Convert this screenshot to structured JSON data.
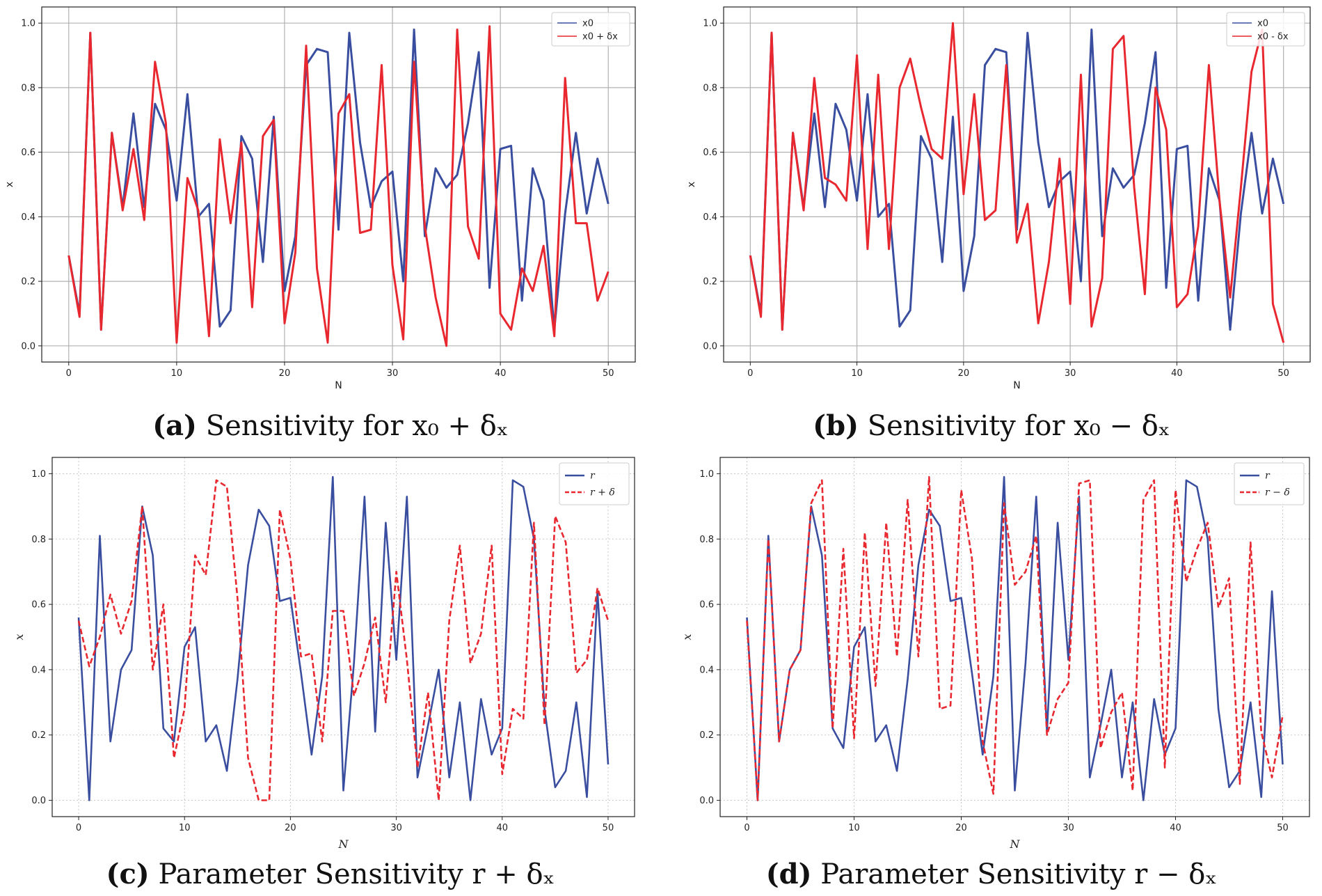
{
  "chart_data": [
    {
      "id": "a",
      "type": "line",
      "caption_label": "(a)",
      "caption_text": "Sensitivity for x₀ + δₓ",
      "xlabel": "N",
      "ylabel": "x",
      "xlim": [
        -2.5,
        52.5
      ],
      "ylim": [
        -0.05,
        1.05
      ],
      "xticks": [
        0,
        10,
        20,
        30,
        40,
        50
      ],
      "yticks": [
        0.0,
        0.2,
        0.4,
        0.6,
        0.8,
        1.0
      ],
      "grid": "solid",
      "legend_position": "top-right",
      "series": [
        {
          "name": "x0",
          "color": "#3a4ea0",
          "dash": "solid",
          "values": [
            0.28,
            0.1,
            0.97,
            0.05,
            0.66,
            0.43,
            0.72,
            0.43,
            0.75,
            0.67,
            0.45,
            0.78,
            0.4,
            0.44,
            0.06,
            0.11,
            0.65,
            0.58,
            0.26,
            0.71,
            0.17,
            0.34,
            0.87,
            0.92,
            0.91,
            0.36,
            0.97,
            0.63,
            0.43,
            0.51,
            0.54,
            0.2,
            0.98,
            0.34,
            0.55,
            0.49,
            0.53,
            0.69,
            0.91,
            0.18,
            0.61,
            0.62,
            0.14,
            0.55,
            0.45,
            0.05,
            0.41,
            0.66,
            0.41,
            0.58,
            0.44
          ]
        },
        {
          "name": "x0 + δx",
          "color": "#e8272f",
          "dash": "solid",
          "values": [
            0.28,
            0.09,
            0.97,
            0.05,
            0.66,
            0.42,
            0.61,
            0.39,
            0.88,
            0.69,
            0.01,
            0.52,
            0.42,
            0.03,
            0.64,
            0.38,
            0.63,
            0.12,
            0.65,
            0.7,
            0.07,
            0.29,
            0.93,
            0.24,
            0.01,
            0.72,
            0.78,
            0.35,
            0.36,
            0.87,
            0.25,
            0.02,
            0.88,
            0.37,
            0.15,
            0.0,
            0.98,
            0.37,
            0.27,
            0.99,
            0.1,
            0.05,
            0.24,
            0.17,
            0.31,
            0.03,
            0.83,
            0.38,
            0.38,
            0.14,
            0.23
          ]
        }
      ]
    },
    {
      "id": "b",
      "type": "line",
      "caption_label": "(b)",
      "caption_text": "Sensitivity for x₀ − δₓ",
      "xlabel": "N",
      "ylabel": "x",
      "xlim": [
        -2.5,
        52.5
      ],
      "ylim": [
        -0.05,
        1.05
      ],
      "xticks": [
        0,
        10,
        20,
        30,
        40,
        50
      ],
      "yticks": [
        0.0,
        0.2,
        0.4,
        0.6,
        0.8,
        1.0
      ],
      "grid": "solid",
      "legend_position": "top-right",
      "series": [
        {
          "name": "x0",
          "color": "#3a4ea0",
          "dash": "solid",
          "values": [
            0.28,
            0.1,
            0.97,
            0.05,
            0.66,
            0.43,
            0.72,
            0.43,
            0.75,
            0.67,
            0.45,
            0.78,
            0.4,
            0.44,
            0.06,
            0.11,
            0.65,
            0.58,
            0.26,
            0.71,
            0.17,
            0.34,
            0.87,
            0.92,
            0.91,
            0.36,
            0.97,
            0.63,
            0.43,
            0.51,
            0.54,
            0.2,
            0.98,
            0.34,
            0.55,
            0.49,
            0.53,
            0.69,
            0.91,
            0.18,
            0.61,
            0.62,
            0.14,
            0.55,
            0.45,
            0.05,
            0.41,
            0.66,
            0.41,
            0.58,
            0.44
          ]
        },
        {
          "name": "x0 - δx",
          "color": "#e8272f",
          "dash": "solid",
          "values": [
            0.28,
            0.09,
            0.97,
            0.05,
            0.66,
            0.42,
            0.83,
            0.52,
            0.5,
            0.45,
            0.9,
            0.3,
            0.84,
            0.3,
            0.8,
            0.89,
            0.74,
            0.61,
            0.58,
            1.0,
            0.47,
            0.78,
            0.39,
            0.42,
            0.87,
            0.32,
            0.44,
            0.07,
            0.26,
            0.58,
            0.13,
            0.84,
            0.06,
            0.21,
            0.92,
            0.96,
            0.49,
            0.16,
            0.8,
            0.67,
            0.12,
            0.16,
            0.37,
            0.87,
            0.45,
            0.15,
            0.49,
            0.85,
            0.98,
            0.13,
            0.01
          ]
        }
      ]
    },
    {
      "id": "c",
      "type": "line",
      "caption_label": "(c)",
      "caption_text": "Parameter Sensitivity r + δₓ",
      "xlabel": "N",
      "ylabel": "x",
      "xlim": [
        -2.5,
        52.5
      ],
      "ylim": [
        -0.05,
        1.05
      ],
      "xticks": [
        0,
        10,
        20,
        30,
        40,
        50
      ],
      "yticks": [
        0.0,
        0.2,
        0.4,
        0.6,
        0.8,
        1.0
      ],
      "grid": "dotted",
      "legend_position": "top-right",
      "series": [
        {
          "name": "r",
          "color": "#3a4ea0",
          "dash": "solid",
          "values": [
            0.56,
            0.0,
            0.81,
            0.18,
            0.4,
            0.46,
            0.9,
            0.75,
            0.22,
            0.18,
            0.47,
            0.53,
            0.18,
            0.23,
            0.09,
            0.37,
            0.72,
            0.89,
            0.84,
            0.61,
            0.62,
            0.39,
            0.14,
            0.38,
            0.99,
            0.03,
            0.42,
            0.93,
            0.21,
            0.85,
            0.43,
            0.93,
            0.07,
            0.23,
            0.4,
            0.07,
            0.3,
            0.0,
            0.31,
            0.14,
            0.22,
            0.98,
            0.96,
            0.8,
            0.28,
            0.04,
            0.09,
            0.3,
            0.01,
            0.64,
            0.11
          ]
        },
        {
          "name": "r + δ",
          "color": "#e8272f",
          "dash": "dashed",
          "values": [
            0.55,
            0.41,
            0.5,
            0.63,
            0.51,
            0.61,
            0.9,
            0.4,
            0.6,
            0.13,
            0.28,
            0.75,
            0.69,
            0.98,
            0.96,
            0.62,
            0.13,
            0.0,
            0.0,
            0.89,
            0.74,
            0.44,
            0.45,
            0.18,
            0.58,
            0.58,
            0.32,
            0.42,
            0.56,
            0.3,
            0.7,
            0.43,
            0.1,
            0.33,
            0.0,
            0.55,
            0.78,
            0.42,
            0.51,
            0.78,
            0.08,
            0.28,
            0.25,
            0.85,
            0.23,
            0.87,
            0.79,
            0.39,
            0.43,
            0.65,
            0.55
          ]
        }
      ]
    },
    {
      "id": "d",
      "type": "line",
      "caption_label": "(d)",
      "caption_text": "Parameter Sensitivity r − δₓ",
      "xlabel": "N",
      "ylabel": "x",
      "xlim": [
        -2.5,
        52.5
      ],
      "ylim": [
        -0.05,
        1.05
      ],
      "xticks": [
        0,
        10,
        20,
        30,
        40,
        50
      ],
      "yticks": [
        0.0,
        0.2,
        0.4,
        0.6,
        0.8,
        1.0
      ],
      "grid": "dotted",
      "legend_position": "top-right",
      "series": [
        {
          "name": "r",
          "color": "#3a4ea0",
          "dash": "solid",
          "values": [
            0.56,
            0.0,
            0.81,
            0.18,
            0.4,
            0.46,
            0.9,
            0.75,
            0.22,
            0.16,
            0.47,
            0.53,
            0.18,
            0.23,
            0.09,
            0.37,
            0.72,
            0.89,
            0.84,
            0.61,
            0.62,
            0.39,
            0.14,
            0.38,
            0.99,
            0.03,
            0.42,
            0.93,
            0.21,
            0.85,
            0.43,
            0.93,
            0.07,
            0.23,
            0.4,
            0.07,
            0.3,
            0.0,
            0.31,
            0.14,
            0.22,
            0.98,
            0.96,
            0.8,
            0.28,
            0.04,
            0.09,
            0.3,
            0.01,
            0.64,
            0.11
          ]
        },
        {
          "name": "r − δ",
          "color": "#e8272f",
          "dash": "dashed",
          "values": [
            0.55,
            0.0,
            0.8,
            0.18,
            0.4,
            0.46,
            0.91,
            0.98,
            0.22,
            0.77,
            0.19,
            0.82,
            0.35,
            0.85,
            0.44,
            0.92,
            0.44,
            0.99,
            0.28,
            0.29,
            0.95,
            0.74,
            0.18,
            0.02,
            0.91,
            0.66,
            0.7,
            0.81,
            0.2,
            0.31,
            0.36,
            0.97,
            0.98,
            0.16,
            0.27,
            0.33,
            0.03,
            0.92,
            0.98,
            0.1,
            0.95,
            0.67,
            0.77,
            0.85,
            0.59,
            0.68,
            0.05,
            0.79,
            0.21,
            0.07,
            0.26
          ]
        }
      ]
    }
  ]
}
